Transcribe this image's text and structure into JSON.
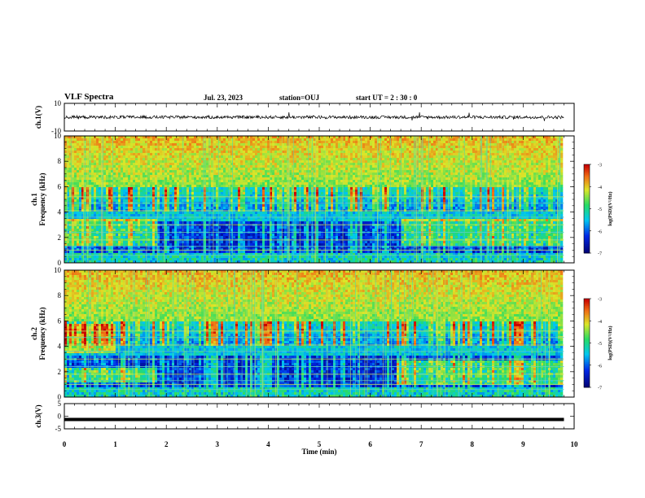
{
  "header": {
    "title": "VLF Spectra",
    "date": "Jul. 23, 2023",
    "station": "station=OUJ",
    "start": "start UT =  2 : 30 : 0"
  },
  "chart_data": [
    {
      "type": "line",
      "panel": "ch1-waveform",
      "ylabel": "ch.1(V)",
      "xlim": [
        0,
        10
      ],
      "ylim": [
        -10,
        10
      ],
      "yticks": [
        10,
        -10
      ],
      "trace_color": "#000000"
    },
    {
      "type": "heatmap",
      "panel": "ch1-spectrogram",
      "ylabel": "ch.1\nFrequency (kHz)",
      "xlim": [
        0,
        10
      ],
      "ylim": [
        0,
        10
      ],
      "yticks": [
        0,
        2,
        4,
        6,
        8,
        10
      ],
      "data_end_min": 9.8,
      "colorbar": {
        "label": "log(PSD)(V²/Hz)",
        "ticks": [
          -3,
          -4,
          -5,
          -6,
          -7
        ],
        "range": [
          -7,
          -3
        ]
      }
    },
    {
      "type": "heatmap",
      "panel": "ch2-spectrogram",
      "ylabel": "ch.2\nFrequency (kHz)",
      "xlim": [
        0,
        10
      ],
      "ylim": [
        0,
        10
      ],
      "yticks": [
        0,
        2,
        4,
        6,
        8,
        10
      ],
      "data_end_min": 9.8,
      "colorbar": {
        "label": "log(PSD)(V²/Hz)",
        "ticks": [
          -3,
          -4,
          -5,
          -6,
          -7
        ],
        "range": [
          -7,
          -3
        ]
      }
    },
    {
      "type": "line",
      "panel": "ch3-waveform",
      "ylabel": "ch.3(V)",
      "xlim": [
        0,
        10
      ],
      "ylim": [
        -5,
        5
      ],
      "yticks": [
        5,
        0,
        -5
      ],
      "series": [
        {
          "values": [
            -1.3,
            -1.3
          ]
        }
      ],
      "x": [
        0,
        9.8
      ],
      "trace_color": "#000000"
    }
  ],
  "xaxis": {
    "label": "Time (min)",
    "ticks": [
      "0",
      "1",
      "2",
      "3",
      "4",
      "5",
      "6",
      "7",
      "8",
      "9",
      "10"
    ]
  }
}
